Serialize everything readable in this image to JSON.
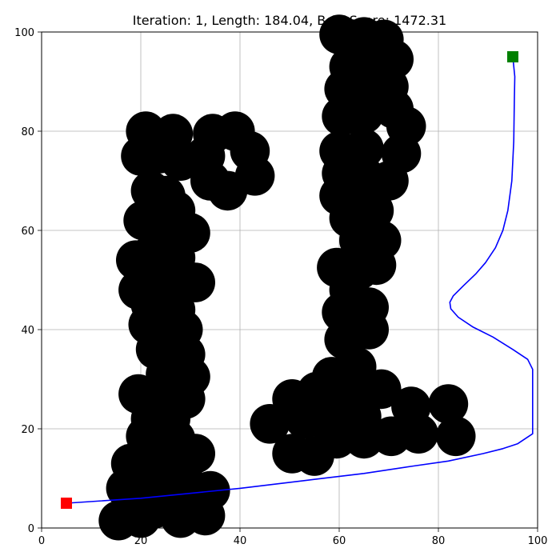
{
  "chart_data": {
    "type": "scatter",
    "title": "Iteration: 1, Length: 184.04, Best Score: 1472.31",
    "xlabel": "",
    "ylabel": "",
    "xlim": [
      0,
      100
    ],
    "ylim": [
      0,
      100
    ],
    "x_ticks": [
      0,
      20,
      40,
      60,
      80,
      100
    ],
    "y_ticks": [
      0,
      20,
      40,
      60,
      80,
      100
    ],
    "grid": true,
    "colors": {
      "obstacle": "#000000",
      "path": "#0000ff",
      "start": "#ff0000",
      "goal": "#008000",
      "grid": "#b0b0b0"
    },
    "start": {
      "x": 5,
      "y": 5
    },
    "goal": {
      "x": 95,
      "y": 95
    },
    "obstacle_radius": 4,
    "obstacles": [
      [
        21,
        80
      ],
      [
        26.5,
        79.5
      ],
      [
        20,
        75
      ],
      [
        24,
        75.5
      ],
      [
        28,
        74
      ],
      [
        33,
        75
      ],
      [
        34.5,
        79.5
      ],
      [
        39,
        80
      ],
      [
        42,
        76
      ],
      [
        43,
        71
      ],
      [
        37.5,
        68
      ],
      [
        34,
        70
      ],
      [
        22,
        68
      ],
      [
        25,
        67
      ],
      [
        20.5,
        62
      ],
      [
        24,
        61.5
      ],
      [
        27,
        64
      ],
      [
        30,
        59.5
      ],
      [
        19,
        54
      ],
      [
        22,
        55
      ],
      [
        27,
        54.5
      ],
      [
        29,
        50
      ],
      [
        24,
        50
      ],
      [
        19.5,
        48
      ],
      [
        31,
        49.5
      ],
      [
        22,
        45
      ],
      [
        27,
        44
      ],
      [
        21.5,
        41
      ],
      [
        26,
        41
      ],
      [
        28.5,
        40
      ],
      [
        23,
        36
      ],
      [
        29,
        35
      ],
      [
        30,
        30.5
      ],
      [
        25,
        31
      ],
      [
        19.5,
        27
      ],
      [
        24,
        27
      ],
      [
        29,
        26
      ],
      [
        22,
        22
      ],
      [
        26,
        22
      ],
      [
        21,
        18.5
      ],
      [
        27,
        18
      ],
      [
        31,
        15
      ],
      [
        18,
        13
      ],
      [
        23,
        14
      ],
      [
        27,
        12
      ],
      [
        17,
        8
      ],
      [
        22,
        8
      ],
      [
        26,
        9
      ],
      [
        30,
        8
      ],
      [
        34,
        7.5
      ],
      [
        15.5,
        1.5
      ],
      [
        20,
        2
      ],
      [
        23,
        4
      ],
      [
        28,
        2
      ],
      [
        33,
        2.5
      ],
      [
        60,
        99.5
      ],
      [
        65,
        99
      ],
      [
        69,
        98.5
      ],
      [
        62,
        93
      ],
      [
        67,
        93
      ],
      [
        71,
        94.5
      ],
      [
        61,
        88.5
      ],
      [
        66,
        88
      ],
      [
        70,
        89
      ],
      [
        60.5,
        83
      ],
      [
        65,
        83.5
      ],
      [
        71,
        84.5
      ],
      [
        73.5,
        81
      ],
      [
        60,
        76
      ],
      [
        65,
        76.5
      ],
      [
        72.5,
        75.5
      ],
      [
        60.5,
        71.5
      ],
      [
        65,
        71
      ],
      [
        70,
        70
      ],
      [
        60,
        67
      ],
      [
        64.5,
        66.5
      ],
      [
        62,
        62.5
      ],
      [
        67,
        64
      ],
      [
        64,
        58
      ],
      [
        68.5,
        58
      ],
      [
        59.5,
        52.5
      ],
      [
        64,
        52
      ],
      [
        67.5,
        53
      ],
      [
        62,
        48
      ],
      [
        66,
        44.5
      ],
      [
        60.5,
        43.5
      ],
      [
        66,
        40
      ],
      [
        61,
        38
      ],
      [
        63.5,
        32.5
      ],
      [
        58.5,
        30.5
      ],
      [
        68.5,
        28
      ],
      [
        64.5,
        22.5
      ],
      [
        62,
        26
      ],
      [
        50.5,
        26
      ],
      [
        55.5,
        27.5
      ],
      [
        46,
        21
      ],
      [
        53,
        22
      ],
      [
        58,
        21
      ],
      [
        50.5,
        15
      ],
      [
        55,
        14.5
      ],
      [
        59.5,
        18
      ],
      [
        65,
        18
      ],
      [
        70.5,
        18.5
      ],
      [
        74.5,
        24.5
      ],
      [
        76,
        19
      ],
      [
        82,
        25
      ],
      [
        83.5,
        18.5
      ]
    ],
    "path": [
      [
        5,
        5
      ],
      [
        20,
        6
      ],
      [
        40,
        8
      ],
      [
        55,
        9.8
      ],
      [
        65,
        11
      ],
      [
        75,
        12.5
      ],
      [
        82,
        13.5
      ],
      [
        89,
        15
      ],
      [
        93,
        16
      ],
      [
        96,
        17
      ],
      [
        99,
        19
      ],
      [
        99,
        32
      ],
      [
        98,
        34
      ],
      [
        95,
        36
      ],
      [
        91,
        38.5
      ],
      [
        87,
        40.5
      ],
      [
        84,
        42.5
      ],
      [
        82.5,
        44.2
      ],
      [
        82.3,
        45.5
      ],
      [
        83,
        46.8
      ],
      [
        85,
        48.8
      ],
      [
        87.5,
        51.2
      ],
      [
        89.5,
        53.5
      ],
      [
        91.5,
        56.5
      ],
      [
        93,
        60
      ],
      [
        94,
        64
      ],
      [
        94.8,
        70
      ],
      [
        95.2,
        78
      ],
      [
        95.3,
        86
      ],
      [
        95.4,
        91
      ],
      [
        95,
        95
      ]
    ]
  }
}
